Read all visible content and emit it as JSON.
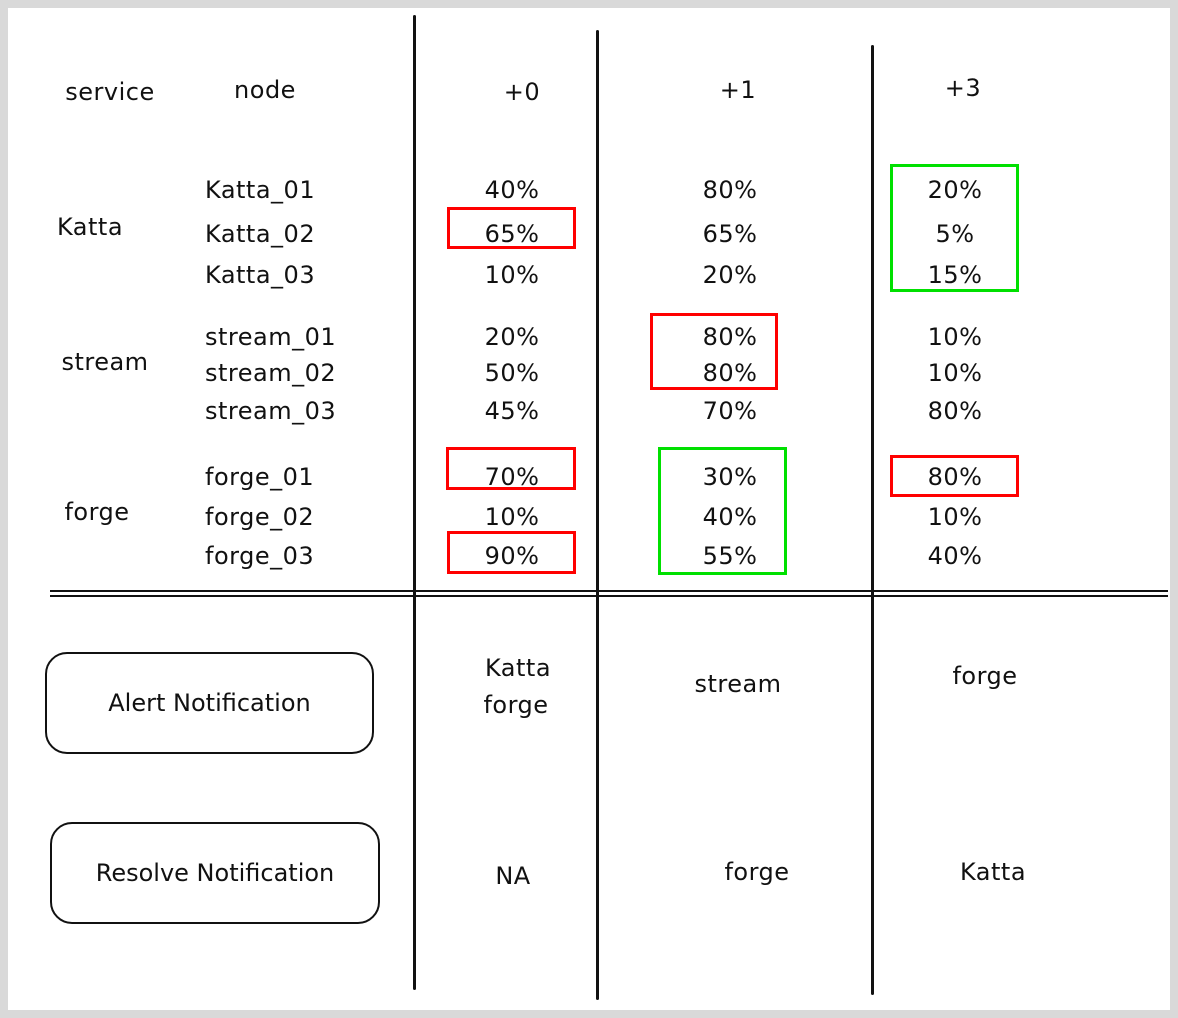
{
  "headers": {
    "service": "service",
    "node": "node",
    "offsets": [
      "+0",
      "+1",
      "+3"
    ]
  },
  "colors": {
    "alert": "#ff0000",
    "resolve": "#00e000"
  },
  "services": [
    {
      "name": "Katta",
      "nodes": [
        {
          "name": "Katta_01",
          "values": [
            "40%",
            "80%",
            "20%"
          ]
        },
        {
          "name": "Katta_02",
          "values": [
            "65%",
            "65%",
            "5%"
          ]
        },
        {
          "name": "Katta_03",
          "values": [
            "10%",
            "20%",
            "15%"
          ]
        }
      ]
    },
    {
      "name": "stream",
      "nodes": [
        {
          "name": "stream_01",
          "values": [
            "20%",
            "80%",
            "10%"
          ]
        },
        {
          "name": "stream_02",
          "values": [
            "50%",
            "80%",
            "10%"
          ]
        },
        {
          "name": "stream_03",
          "values": [
            "45%",
            "70%",
            "80%"
          ]
        }
      ]
    },
    {
      "name": "forge",
      "nodes": [
        {
          "name": "forge_01",
          "values": [
            "70%",
            "30%",
            "80%"
          ]
        },
        {
          "name": "forge_02",
          "values": [
            "10%",
            "40%",
            "10%"
          ]
        },
        {
          "name": "forge_03",
          "values": [
            "90%",
            "55%",
            "40%"
          ]
        }
      ]
    }
  ],
  "highlights": [
    {
      "color": "red",
      "column": "+0",
      "nodes": [
        "Katta_02"
      ]
    },
    {
      "color": "red",
      "column": "+0",
      "nodes": [
        "forge_01"
      ]
    },
    {
      "color": "red",
      "column": "+0",
      "nodes": [
        "forge_03"
      ]
    },
    {
      "color": "red",
      "column": "+1",
      "nodes": [
        "stream_01",
        "stream_02"
      ]
    },
    {
      "color": "green",
      "column": "+1",
      "nodes": [
        "forge_01",
        "forge_02",
        "forge_03"
      ]
    },
    {
      "color": "red",
      "column": "+3",
      "nodes": [
        "forge_01"
      ]
    },
    {
      "color": "green",
      "column": "+3",
      "nodes": [
        "Katta_01",
        "Katta_02",
        "Katta_03"
      ]
    }
  ],
  "alert": {
    "label": "Alert Notification",
    "values": [
      [
        "Katta",
        "forge"
      ],
      [
        "stream"
      ],
      [
        "forge"
      ]
    ]
  },
  "resolve": {
    "label": "Resolve Notification",
    "values": [
      "NA",
      "forge",
      "Katta"
    ]
  }
}
